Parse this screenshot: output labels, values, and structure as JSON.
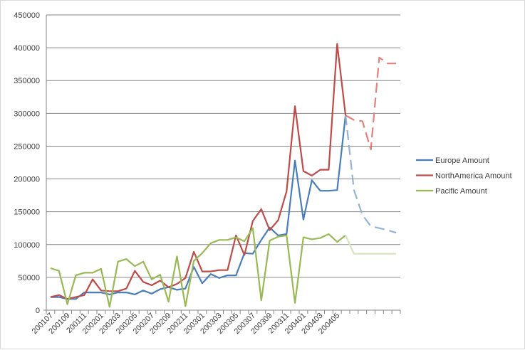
{
  "chart_data": {
    "type": "line",
    "title": "",
    "xlabel": "",
    "ylabel": "",
    "ylim": [
      0,
      450000
    ],
    "yticks": [
      "0",
      "50000",
      "100000",
      "150000",
      "200000",
      "250000",
      "300000",
      "350000",
      "400000",
      "450000"
    ],
    "grid": "horizontal",
    "legend_position": "right",
    "x_tick_labels": [
      "200107",
      "200109",
      "200111",
      "200201",
      "200203",
      "200205",
      "200207",
      "200209",
      "200211",
      "200301",
      "200303",
      "200305",
      "200307",
      "200309",
      "200311",
      "200401",
      "200403",
      "200405"
    ],
    "x": [
      "200107",
      "200108",
      "200109",
      "200110",
      "200111",
      "200112",
      "200201",
      "200202",
      "200203",
      "200204",
      "200205",
      "200206",
      "200207",
      "200208",
      "200209",
      "200210",
      "200211",
      "200212",
      "200301",
      "200302",
      "200303",
      "200304",
      "200305",
      "200306",
      "200307",
      "200308",
      "200309",
      "200310",
      "200311",
      "200312",
      "200401",
      "200402",
      "200403",
      "200404",
      "200405",
      "200406",
      "200407",
      "200408",
      "200409",
      "200410",
      "200411",
      "200412"
    ],
    "series": [
      {
        "name": "Europe Amount",
        "color": "#4a7ebb",
        "forecast_color": "#95b3d7",
        "forecast_start_index": 35,
        "values": [
          20000,
          20000,
          17000,
          17000,
          27000,
          27000,
          27000,
          24000,
          27000,
          27000,
          24000,
          30000,
          25000,
          32000,
          35000,
          31000,
          33000,
          66000,
          41000,
          55000,
          49000,
          53000,
          53000,
          87000,
          86000,
          107000,
          126000,
          114000,
          116000,
          228000,
          138000,
          198000,
          182000,
          182000,
          183000,
          297000,
          183000,
          145000,
          128000,
          125000,
          122000,
          118000
        ]
      },
      {
        "name": "NorthAmerica Amount",
        "color": "#be4b48",
        "forecast_color": "#e6807d",
        "forecast_start_index": 35,
        "values": [
          20000,
          23000,
          17000,
          20000,
          23000,
          47000,
          30000,
          29000,
          29000,
          33000,
          60000,
          43000,
          38000,
          45000,
          35000,
          40000,
          49000,
          89000,
          59000,
          59000,
          61000,
          61000,
          114000,
          84000,
          136000,
          154000,
          122000,
          137000,
          181000,
          311000,
          212000,
          205000,
          214000,
          214000,
          406000,
          297000,
          290000,
          288000,
          245000,
          385000,
          376000,
          376000
        ]
      },
      {
        "name": "Pacific Amount",
        "color": "#98b954",
        "forecast_color": "#d7e4bd",
        "forecast_start_index": 35,
        "values": [
          64000,
          60000,
          9000,
          53000,
          57000,
          57000,
          63000,
          5000,
          74000,
          78000,
          67000,
          74000,
          47000,
          54000,
          13000,
          82000,
          6000,
          75000,
          87000,
          102000,
          107000,
          107000,
          111000,
          105000,
          125000,
          15000,
          106000,
          112000,
          114000,
          11000,
          111000,
          108000,
          110000,
          116000,
          104000,
          114000,
          86000,
          86000,
          86000,
          86000,
          86000,
          86000
        ]
      }
    ]
  }
}
